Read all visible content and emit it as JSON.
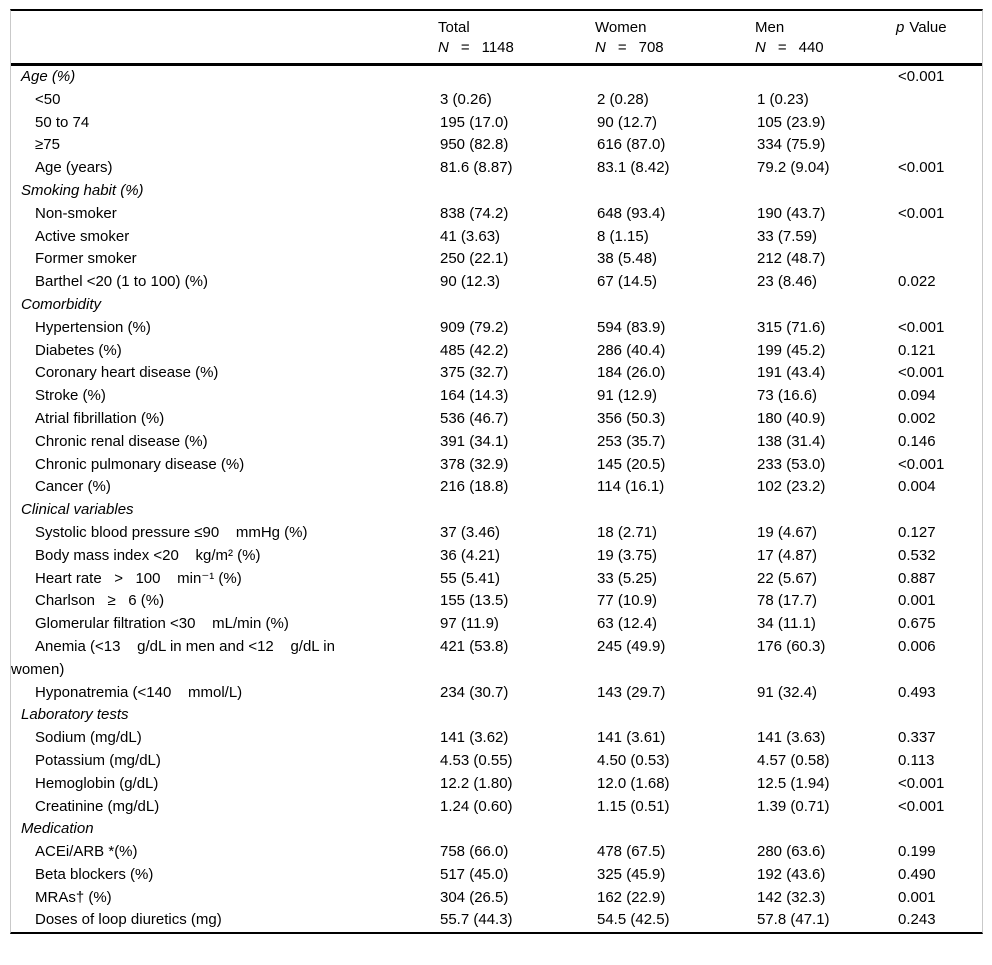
{
  "colors": {
    "text": "#000000",
    "background": "#ffffff",
    "rules": "#000000",
    "frame_border": "#c9c9c9"
  },
  "table": {
    "header": {
      "columns": [
        {
          "label": "Total",
          "n_symbol": "N",
          "equals": "=",
          "n_value": "1148"
        },
        {
          "label": "Women",
          "n_symbol": "N",
          "equals": "=",
          "n_value": "708"
        },
        {
          "label": "Men",
          "n_symbol": "N",
          "equals": "=",
          "n_value": "440"
        }
      ],
      "p_symbol": "p",
      "p_label": "Value"
    },
    "sections": [
      {
        "title": "Age (%)",
        "p": "<0.001",
        "rows": [
          {
            "label": "<50",
            "total": "3 (0.26)",
            "women": "2 (0.28)",
            "men": "1 (0.23)",
            "p": ""
          },
          {
            "label": "50 to 74",
            "total": "195 (17.0)",
            "women": "90 (12.7)",
            "men": "105 (23.9)",
            "p": ""
          },
          {
            "label": "≥75",
            "total": "950 (82.8)",
            "women": "616 (87.0)",
            "men": "334 (75.9)",
            "p": ""
          },
          {
            "label": "Age (years)",
            "total": "81.6 (8.87)",
            "women": "83.1 (8.42)",
            "men": "79.2 (9.04)",
            "p": "<0.001"
          }
        ]
      },
      {
        "title": "Smoking habit (%)",
        "p": "",
        "rows": [
          {
            "label": "Non-smoker",
            "total": "838 (74.2)",
            "women": "648 (93.4)",
            "men": "190 (43.7)",
            "p": "<0.001"
          },
          {
            "label": "Active smoker",
            "total": "41 (3.63)",
            "women": "8 (1.15)",
            "men": "33 (7.59)",
            "p": ""
          },
          {
            "label": "Former smoker",
            "total": "250 (22.1)",
            "women": "38 (5.48)",
            "men": "212 (48.7)",
            "p": ""
          },
          {
            "label": "Barthel <20 (1 to 100) (%)",
            "total": "90 (12.3)",
            "women": "67 (14.5)",
            "men": "23 (8.46)",
            "p": "0.022"
          }
        ]
      },
      {
        "title": "Comorbidity",
        "p": "",
        "rows": [
          {
            "label": "Hypertension (%)",
            "total": "909 (79.2)",
            "women": "594 (83.9)",
            "men": "315 (71.6)",
            "p": "<0.001"
          },
          {
            "label": "Diabetes (%)",
            "total": "485 (42.2)",
            "women": "286 (40.4)",
            "men": "199 (45.2)",
            "p": "0.121"
          },
          {
            "label": "Coronary heart disease (%)",
            "total": "375 (32.7)",
            "women": "184 (26.0)",
            "men": "191 (43.4)",
            "p": "<0.001"
          },
          {
            "label": "Stroke (%)",
            "total": "164 (14.3)",
            "women": "91 (12.9)",
            "men": "73 (16.6)",
            "p": "0.094"
          },
          {
            "label": "Atrial fibrillation (%)",
            "total": "536 (46.7)",
            "women": "356 (50.3)",
            "men": "180 (40.9)",
            "p": "0.002"
          },
          {
            "label": "Chronic renal disease (%)",
            "total": "391 (34.1)",
            "women": "253 (35.7)",
            "men": "138 (31.4)",
            "p": "0.146"
          },
          {
            "label": "Chronic pulmonary disease (%)",
            "total": "378 (32.9)",
            "women": "145 (20.5)",
            "men": "233 (53.0)",
            "p": "<0.001"
          },
          {
            "label": "Cancer (%)",
            "total": "216 (18.8)",
            "women": "114 (16.1)",
            "men": "102 (23.2)",
            "p": "0.004"
          }
        ]
      },
      {
        "title": "Clinical variables",
        "p": "",
        "rows": [
          {
            "label": "Systolic blood pressure ≤90    mmHg (%)",
            "total": "37 (3.46)",
            "women": "18 (2.71)",
            "men": "19 (4.67)",
            "p": "0.127"
          },
          {
            "label": "Body mass index <20    kg/m² (%)",
            "total": "36 (4.21)",
            "women": "19 (3.75)",
            "men": "17 (4.87)",
            "p": "0.532"
          },
          {
            "label": "Heart rate   >   100    min⁻¹ (%)",
            "total": "55 (5.41)",
            "women": "33 (5.25)",
            "men": "22 (5.67)",
            "p": "0.887"
          },
          {
            "label": "Charlson   ≥   6 (%)",
            "total": "155 (13.5)",
            "women": "77 (10.9)",
            "men": "78 (17.7)",
            "p": "0.001"
          },
          {
            "label": "Glomerular filtration <30    mL/min (%)",
            "total": "97 (11.9)",
            "women": "63 (12.4)",
            "men": "34 (11.1)",
            "p": "0.675"
          },
          {
            "label": "Anemia (<13    g/dL in men and <12    g/dL in\nwomen)",
            "total": "421 (53.8)",
            "women": "245 (49.9)",
            "men": "176 (60.3)",
            "p": "0.006"
          },
          {
            "label": "Hyponatremia (<140    mmol/L)",
            "total": "234 (30.7)",
            "women": "143 (29.7)",
            "men": "91 (32.4)",
            "p": "0.493"
          }
        ]
      },
      {
        "title": "Laboratory tests",
        "p": "",
        "rows": [
          {
            "label": "Sodium (mg/dL)",
            "total": "141 (3.62)",
            "women": "141 (3.61)",
            "men": "141 (3.63)",
            "p": "0.337"
          },
          {
            "label": "Potassium (mg/dL)",
            "total": "4.53 (0.55)",
            "women": "4.50 (0.53)",
            "men": "4.57 (0.58)",
            "p": "0.113"
          },
          {
            "label": "Hemoglobin (g/dL)",
            "total": "12.2 (1.80)",
            "women": "12.0 (1.68)",
            "men": "12.5 (1.94)",
            "p": "<0.001"
          },
          {
            "label": "Creatinine (mg/dL)",
            "total": "1.24 (0.60)",
            "women": "1.15 (0.51)",
            "men": "1.39 (0.71)",
            "p": "<0.001"
          }
        ]
      },
      {
        "title": "Medication",
        "p": "",
        "rows": [
          {
            "label": "ACEi/ARB *(%)",
            "total": "758 (66.0)",
            "women": "478 (67.5)",
            "men": "280 (63.6)",
            "p": "0.199"
          },
          {
            "label": "Beta blockers (%)",
            "total": "517 (45.0)",
            "women": "325 (45.9)",
            "men": "192 (43.6)",
            "p": "0.490"
          },
          {
            "label": "MRAs† (%)",
            "total": "304 (26.5)",
            "women": "162 (22.9)",
            "men": "142 (32.3)",
            "p": "0.001"
          },
          {
            "label": "Doses of loop diuretics (mg)",
            "total": "55.7 (44.3)",
            "women": "54.5 (42.5)",
            "men": "57.8 (47.1)",
            "p": "0.243"
          }
        ]
      }
    ]
  }
}
